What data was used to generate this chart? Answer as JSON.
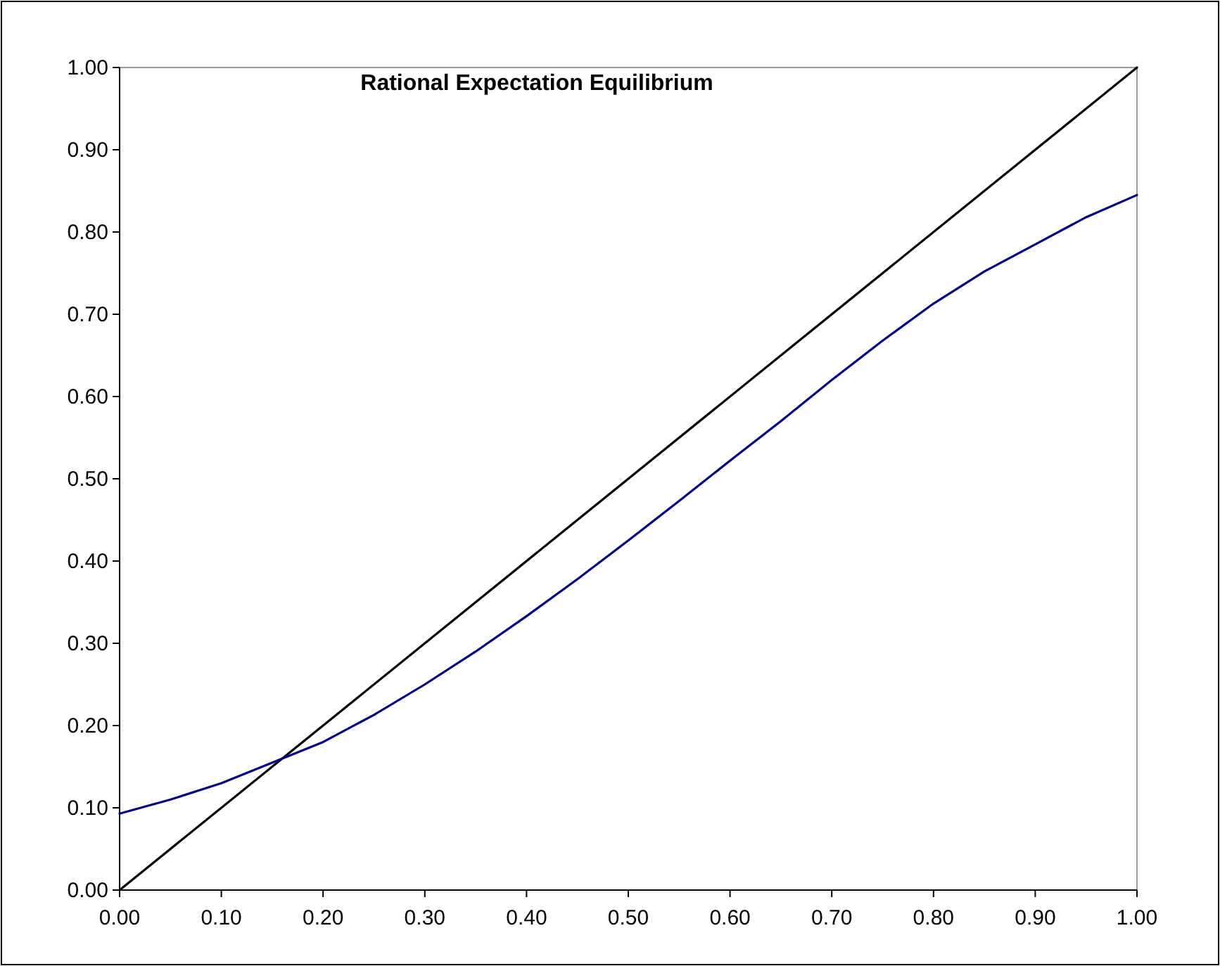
{
  "chart_data": {
    "type": "line",
    "title": "Rational Expectation Equilibrium",
    "xlim": [
      0,
      1
    ],
    "ylim": [
      0,
      1
    ],
    "xticks": [
      {
        "value": 0,
        "label": "0.00"
      },
      {
        "value": 0.1,
        "label": "0.10"
      },
      {
        "value": 0.2,
        "label": "0.20"
      },
      {
        "value": 0.3,
        "label": "0.30"
      },
      {
        "value": 0.4,
        "label": "0.40"
      },
      {
        "value": 0.5,
        "label": "0.50"
      },
      {
        "value": 0.6,
        "label": "0.60"
      },
      {
        "value": 0.7,
        "label": "0.70"
      },
      {
        "value": 0.8,
        "label": "0.80"
      },
      {
        "value": 0.9,
        "label": "0.90"
      },
      {
        "value": 1,
        "label": "1.00"
      }
    ],
    "yticks": [
      {
        "value": 0,
        "label": "0.00"
      },
      {
        "value": 0.1,
        "label": "0.10"
      },
      {
        "value": 0.2,
        "label": "0.20"
      },
      {
        "value": 0.3,
        "label": "0.30"
      },
      {
        "value": 0.4,
        "label": "0.40"
      },
      {
        "value": 0.5,
        "label": "0.50"
      },
      {
        "value": 0.6,
        "label": "0.60"
      },
      {
        "value": 0.7,
        "label": "0.70"
      },
      {
        "value": 0.8,
        "label": "0.80"
      },
      {
        "value": 0.9,
        "label": "0.90"
      },
      {
        "value": 1,
        "label": "1.00"
      }
    ],
    "grid": false,
    "series": [
      {
        "color": "#000000",
        "x": [
          0,
          1
        ],
        "values": [
          0,
          1
        ]
      },
      {
        "color": "#000080",
        "x": [
          0,
          0.05,
          0.1,
          0.15,
          0.2,
          0.25,
          0.3,
          0.35,
          0.4,
          0.45,
          0.5,
          0.55,
          0.6,
          0.65,
          0.7,
          0.75,
          0.8,
          0.85,
          0.9,
          0.95,
          1
        ],
        "values": [
          0.093,
          0.11,
          0.13,
          0.155,
          0.18,
          0.213,
          0.25,
          0.29,
          0.333,
          0.378,
          0.425,
          0.473,
          0.522,
          0.57,
          0.62,
          0.668,
          0.713,
          0.752,
          0.785,
          0.818,
          0.845
        ]
      }
    ]
  }
}
